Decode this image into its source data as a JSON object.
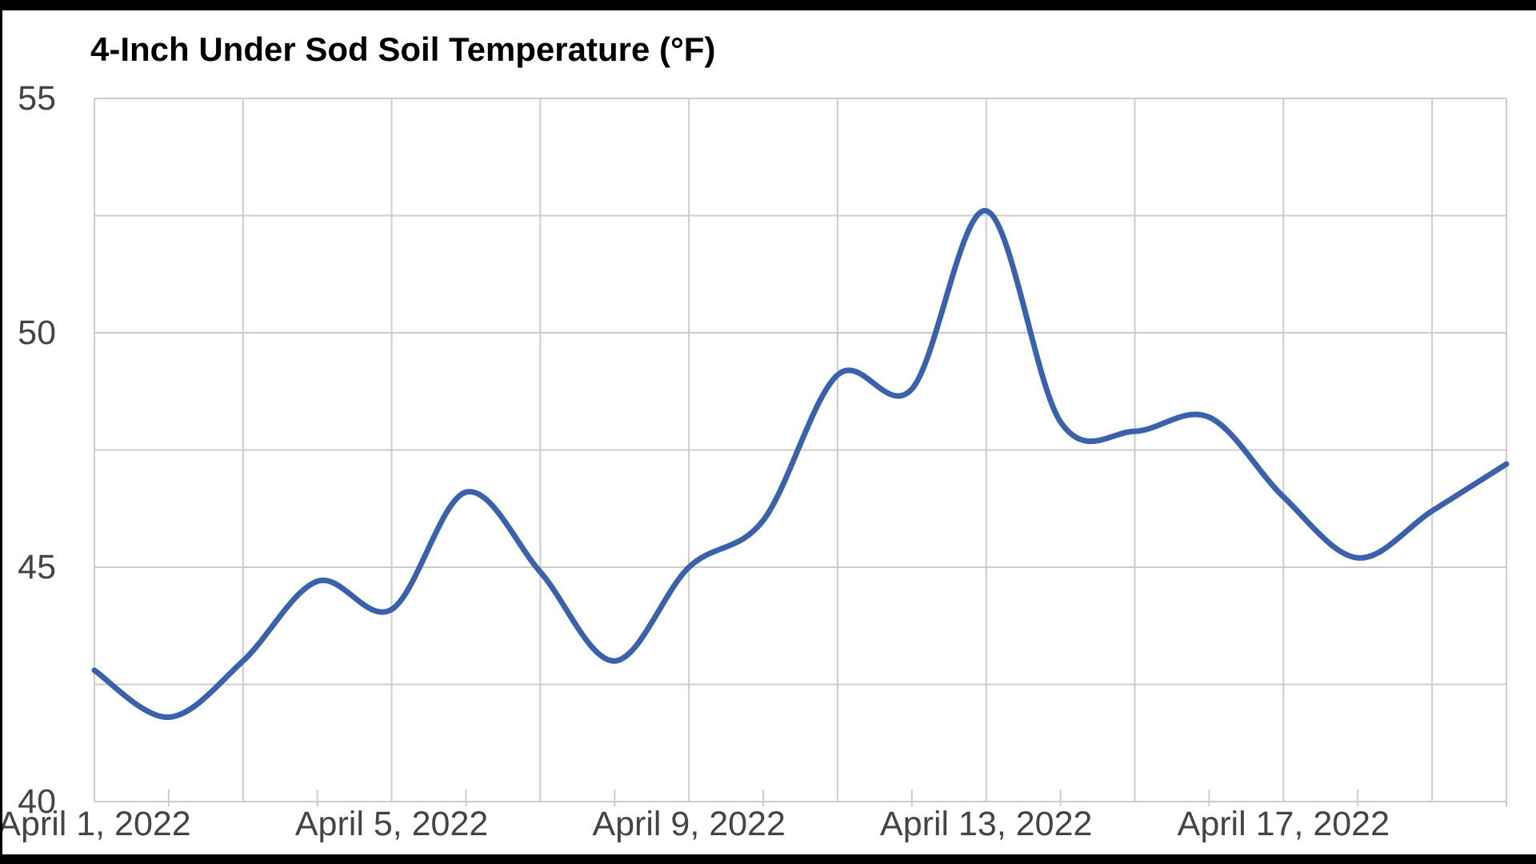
{
  "frame": {
    "background": "#ffffff",
    "border_color": "#000000"
  },
  "chart_data": {
    "type": "line",
    "title": "4-Inch Under Sod Soil Temperature (°F)",
    "title_color": "#000000",
    "curve": "smooth",
    "line_width": 7,
    "grid_on": true,
    "legend": "none",
    "series": [
      {
        "name": "4-Inch Under Sod Soil Temperature (°F)",
        "color": "#3961ac",
        "values": [
          42.8,
          41.8,
          43.0,
          44.7,
          44.1,
          46.6,
          44.9,
          43.0,
          45.0,
          46.0,
          49.1,
          48.8,
          52.6,
          48.1,
          47.9,
          48.2,
          46.5,
          45.2,
          46.2,
          47.2
        ]
      }
    ],
    "x": [
      "April 1, 2022",
      "April 2, 2022",
      "April 3, 2022",
      "April 4, 2022",
      "April 5, 2022",
      "April 6, 2022",
      "April 7, 2022",
      "April 8, 2022",
      "April 9, 2022",
      "April 10, 2022",
      "April 11, 2022",
      "April 12, 2022",
      "April 13, 2022",
      "April 14, 2022",
      "April 15, 2022",
      "April 16, 2022",
      "April 17, 2022",
      "April 18, 2022",
      "April 19, 2022",
      "April 20, 2022"
    ],
    "x_axis": {
      "tick_label_days": [
        1,
        5,
        9,
        13,
        17
      ],
      "tick_labels": [
        "April 1, 2022",
        "April 5, 2022",
        "April 9, 2022",
        "April 13, 2022",
        "April 17, 2022"
      ],
      "gridline_days": [
        1,
        3,
        5,
        7,
        9,
        11,
        13,
        15,
        17,
        19,
        20
      ],
      "minor_tick_days": [
        2,
        4,
        6,
        8,
        10,
        12,
        14,
        16,
        18,
        20
      ],
      "label_color": "#444444"
    },
    "y_axis": {
      "min": 40,
      "max": 55,
      "tick_labels": [
        "55",
        "50",
        "45",
        "40"
      ],
      "tick_values": [
        55,
        50,
        45,
        40
      ],
      "gridline_values": [
        55,
        52.5,
        50,
        47.5,
        45,
        42.5,
        40
      ],
      "label_color": "#444444",
      "gridline_color": "#cccccc"
    }
  }
}
